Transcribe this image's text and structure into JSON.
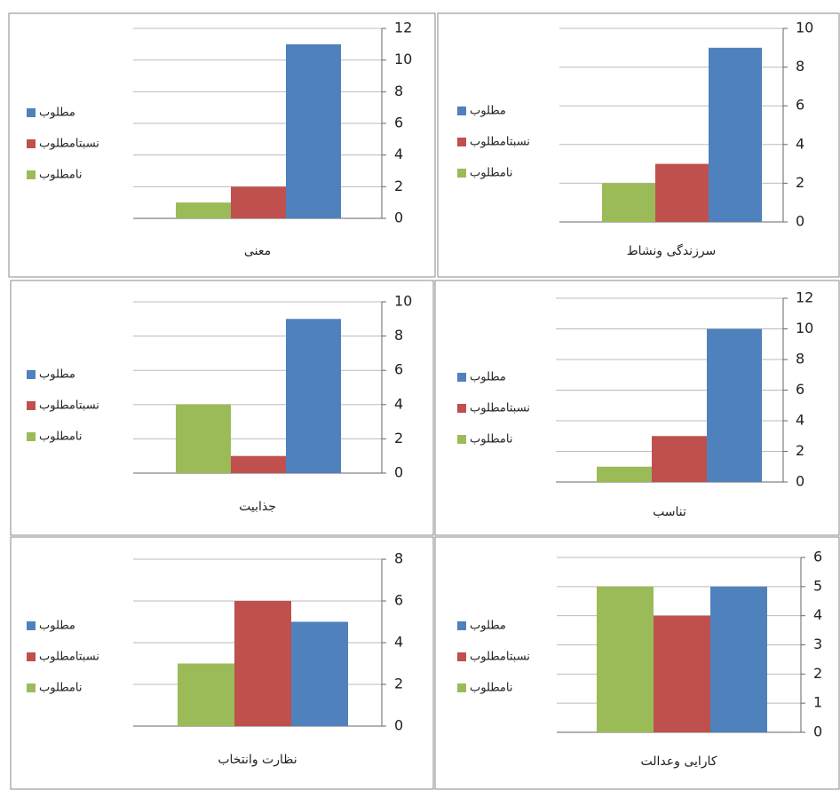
{
  "chart_data": [
    {
      "type": "bar",
      "categories": [
        "معنی"
      ],
      "ylim": [
        0,
        12
      ],
      "yticks": [
        0,
        2,
        4,
        6,
        8,
        10,
        12
      ],
      "grid": true,
      "series": [
        {
          "name": "نامطلوب",
          "color": "#9bbb59",
          "values": [
            1
          ]
        },
        {
          "name": "نسبتامطلوب",
          "color": "#c0504d",
          "values": [
            2
          ]
        },
        {
          "name": "مطلوب",
          "color": "#4f81bd",
          "values": [
            11
          ]
        }
      ]
    },
    {
      "type": "bar",
      "categories": [
        "سرزندگی ونشاط"
      ],
      "ylim": [
        0,
        10
      ],
      "yticks": [
        0,
        2,
        4,
        6,
        8,
        10
      ],
      "grid": true,
      "series": [
        {
          "name": "نامطلوب",
          "color": "#9bbb59",
          "values": [
            2
          ]
        },
        {
          "name": "نسبتامطلوب",
          "color": "#c0504d",
          "values": [
            3
          ]
        },
        {
          "name": "مطلوب",
          "color": "#4f81bd",
          "values": [
            9
          ]
        }
      ]
    },
    {
      "type": "bar",
      "categories": [
        "جذابیت"
      ],
      "ylim": [
        0,
        10
      ],
      "yticks": [
        0,
        2,
        4,
        6,
        8,
        10
      ],
      "grid": true,
      "series": [
        {
          "name": "نامطلوب",
          "color": "#9bbb59",
          "values": [
            4
          ]
        },
        {
          "name": "نسبتامطلوب",
          "color": "#c0504d",
          "values": [
            1
          ]
        },
        {
          "name": "مطلوب",
          "color": "#4f81bd",
          "values": [
            9
          ]
        }
      ]
    },
    {
      "type": "bar",
      "categories": [
        "تناسب"
      ],
      "ylim": [
        0,
        12
      ],
      "yticks": [
        0,
        2,
        4,
        6,
        8,
        10,
        12
      ],
      "grid": true,
      "series": [
        {
          "name": "نامطلوب",
          "color": "#9bbb59",
          "values": [
            1
          ]
        },
        {
          "name": "نسبتامطلوب",
          "color": "#c0504d",
          "values": [
            3
          ]
        },
        {
          "name": "مطلوب",
          "color": "#4f81bd",
          "values": [
            10
          ]
        }
      ]
    },
    {
      "type": "bar",
      "categories": [
        "نظارت وانتخاب"
      ],
      "ylim": [
        0,
        8
      ],
      "yticks": [
        0,
        2,
        4,
        6,
        8
      ],
      "grid": true,
      "series": [
        {
          "name": "نامطلوب",
          "color": "#9bbb59",
          "values": [
            3
          ]
        },
        {
          "name": "نسبتامطلوب",
          "color": "#c0504d",
          "values": [
            6
          ]
        },
        {
          "name": "مطلوب",
          "color": "#4f81bd",
          "values": [
            5
          ]
        }
      ]
    },
    {
      "type": "bar",
      "categories": [
        "کارایی وعدالت"
      ],
      "ylim": [
        0,
        6
      ],
      "yticks": [
        0,
        1,
        2,
        3,
        4,
        5,
        6
      ],
      "grid": true,
      "series": [
        {
          "name": "نامطلوب",
          "color": "#9bbb59",
          "values": [
            5
          ]
        },
        {
          "name": "نسبتامطلوب",
          "color": "#c0504d",
          "values": [
            4
          ]
        },
        {
          "name": "مطلوب",
          "color": "#4f81bd",
          "values": [
            5
          ]
        }
      ]
    }
  ]
}
